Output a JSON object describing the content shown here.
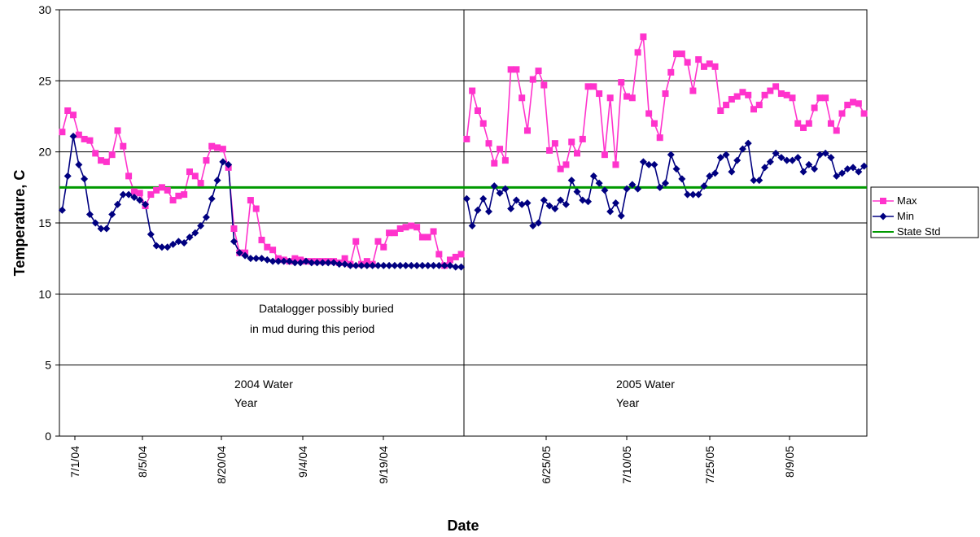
{
  "chart_data": {
    "type": "line",
    "title": "",
    "xlabel": "Date",
    "ylabel": "Temperature, C",
    "ylim": [
      0,
      30
    ],
    "yticks": [
      "0",
      "5",
      "10",
      "15",
      "20",
      "25",
      "30"
    ],
    "grid": "horizontal",
    "legend_position": "right",
    "periods": [
      {
        "label": "2004 Water Year",
        "label_lines": [
          "2004 Water",
          "Year"
        ],
        "xticks": [
          "7/1/04",
          "8/5/04",
          "8/20/04",
          "9/4/04",
          "9/19/04"
        ],
        "annotation": [
          "Datalogger possibly buried",
          "in mud during this period"
        ]
      },
      {
        "label": "2005 Water Year",
        "label_lines": [
          "2005 Water",
          "Year"
        ],
        "xticks": [
          "6/25/05",
          "7/10/05",
          "7/25/05",
          "8/9/05"
        ]
      }
    ],
    "series": [
      {
        "name": "Max",
        "color": "#ff33cc",
        "marker": "square",
        "period_values": [
          [
            21.4,
            22.9,
            22.6,
            21.2,
            20.9,
            20.8,
            19.9,
            19.4,
            19.3,
            19.8,
            21.5,
            20.4,
            18.3,
            17.2,
            17.1,
            16.2,
            17.0,
            17.3,
            17.5,
            17.3,
            16.6,
            16.9,
            17.0,
            18.6,
            18.3,
            17.8,
            19.4,
            20.4,
            20.3,
            20.2,
            18.9,
            14.6,
            12.9,
            12.9,
            16.6,
            16.0,
            13.8,
            13.3,
            13.1,
            12.5,
            12.4,
            12.3,
            12.5,
            12.4,
            12.3,
            12.3,
            12.3,
            12.3,
            12.3,
            12.3,
            12.2,
            12.5,
            12.1,
            13.7,
            12.1,
            12.3,
            12.1,
            13.7,
            13.3,
            14.3,
            14.3,
            14.6,
            14.7,
            14.8,
            14.7,
            14.0,
            14.0,
            14.4,
            12.8,
            12.0,
            12.4,
            12.6,
            12.8
          ],
          [
            20.9,
            24.3,
            22.9,
            22.0,
            20.6,
            19.2,
            20.2,
            19.4,
            25.8,
            25.8,
            23.8,
            21.5,
            25.1,
            25.7,
            24.7,
            20.1,
            20.6,
            18.8,
            19.1,
            20.7,
            19.9,
            20.9,
            24.6,
            24.6,
            24.1,
            19.8,
            23.8,
            19.1,
            24.9,
            23.9,
            23.8,
            27.0,
            28.1,
            22.7,
            22.0,
            21.0,
            24.1,
            25.6,
            26.9,
            26.9,
            26.3,
            24.3,
            26.5,
            26.0,
            26.2,
            26.0,
            22.9,
            23.3,
            23.7,
            23.9,
            24.2,
            24.0,
            23.0,
            23.3,
            24.0,
            24.3,
            24.6,
            24.1,
            24.0,
            23.8,
            22.0,
            21.7,
            22.0,
            23.1,
            23.8,
            23.8,
            22.0,
            21.5,
            22.7,
            23.3,
            23.5,
            23.4,
            22.7
          ]
        ]
      },
      {
        "name": "Min",
        "color": "#000080",
        "marker": "diamond",
        "period_values": [
          [
            15.9,
            18.3,
            21.1,
            19.1,
            18.1,
            15.6,
            15.0,
            14.6,
            14.6,
            15.6,
            16.3,
            17.0,
            17.0,
            16.8,
            16.6,
            16.3,
            14.2,
            13.4,
            13.3,
            13.3,
            13.5,
            13.7,
            13.6,
            14.0,
            14.3,
            14.8,
            15.4,
            16.7,
            18.0,
            19.3,
            19.1,
            13.7,
            12.9,
            12.7,
            12.5,
            12.5,
            12.5,
            12.4,
            12.3,
            12.3,
            12.3,
            12.3,
            12.2,
            12.2,
            12.3,
            12.2,
            12.2,
            12.2,
            12.2,
            12.2,
            12.1,
            12.1,
            12.0,
            12.0,
            12.0,
            12.0,
            12.0,
            12.0,
            12.0,
            12.0,
            12.0,
            12.0,
            12.0,
            12.0,
            12.0,
            12.0,
            12.0,
            12.0,
            12.0,
            12.0,
            12.0,
            11.9,
            11.9
          ],
          [
            16.7,
            14.8,
            15.9,
            16.7,
            15.8,
            17.6,
            17.1,
            17.4,
            16.0,
            16.6,
            16.3,
            16.4,
            14.8,
            15.0,
            16.6,
            16.2,
            16.0,
            16.6,
            16.3,
            18.0,
            17.2,
            16.6,
            16.5,
            18.3,
            17.8,
            17.3,
            15.8,
            16.4,
            15.5,
            17.4,
            17.7,
            17.4,
            19.3,
            19.1,
            19.1,
            17.5,
            17.8,
            19.8,
            18.8,
            18.1,
            17.0,
            17.0,
            17.0,
            17.6,
            18.3,
            18.5,
            19.6,
            19.8,
            18.6,
            19.4,
            20.2,
            20.6,
            18.0,
            18.0,
            18.9,
            19.3,
            19.9,
            19.6,
            19.4,
            19.4,
            19.6,
            18.6,
            19.1,
            18.8,
            19.8,
            19.9,
            19.6,
            18.3,
            18.5,
            18.8,
            18.9,
            18.6,
            19.0
          ]
        ]
      },
      {
        "name": "State Std",
        "color": "#009900",
        "marker": "none",
        "constant": 17.5
      }
    ]
  }
}
